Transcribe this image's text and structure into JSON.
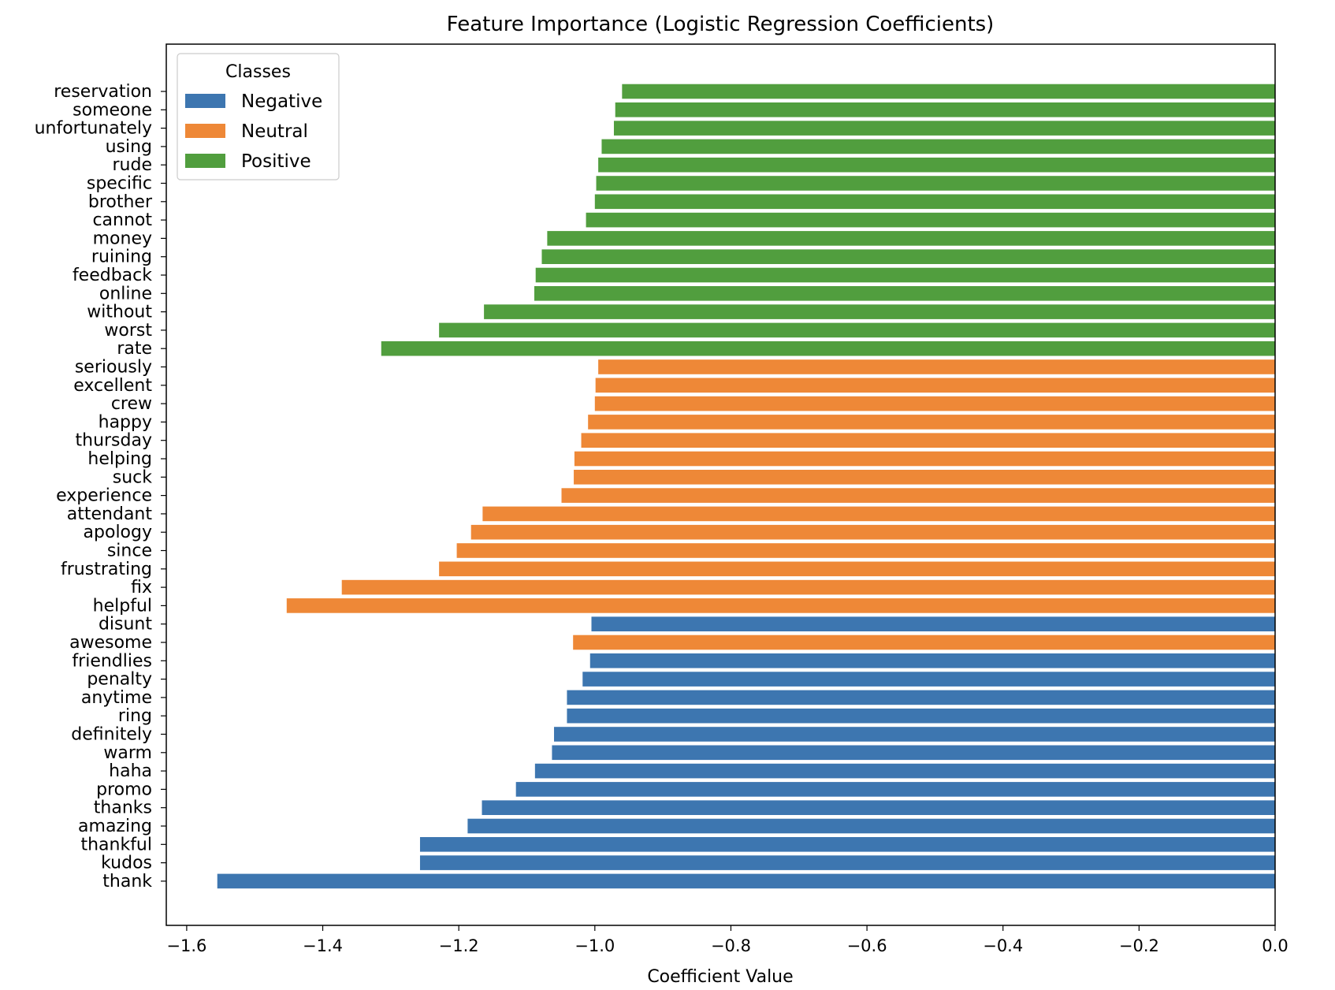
{
  "chart_data": {
    "type": "bar",
    "orientation": "horizontal",
    "title": "Feature Importance (Logistic Regression Coefficients)",
    "xlabel": "Coefficient Value",
    "ylabel": "",
    "xlim": [
      -1.63,
      0.0
    ],
    "xticks": [
      -1.6,
      -1.4,
      -1.2,
      -1.0,
      -0.8,
      -0.6,
      -0.4,
      -0.2,
      0.0
    ],
    "xtick_labels": [
      "−1.6",
      "−1.4",
      "−1.2",
      "−1.0",
      "−0.8",
      "−0.6",
      "−0.4",
      "−0.2",
      "0.0"
    ],
    "grid": false,
    "legend": {
      "title": "Classes",
      "placement": "upper-left",
      "entries": [
        {
          "name": "Negative",
          "color": "#3d76b0"
        },
        {
          "name": "Neutral",
          "color": "#ee8837"
        },
        {
          "name": "Positive",
          "color": "#519e3e"
        }
      ]
    },
    "bars": [
      {
        "label": "reservation",
        "value": -0.96,
        "class": "Positive"
      },
      {
        "label": "someone",
        "value": -0.97,
        "class": "Positive"
      },
      {
        "label": "unfortunately",
        "value": -0.972,
        "class": "Positive"
      },
      {
        "label": "using",
        "value": -0.99,
        "class": "Positive"
      },
      {
        "label": "rude",
        "value": -0.995,
        "class": "Positive"
      },
      {
        "label": "specific",
        "value": -0.998,
        "class": "Positive"
      },
      {
        "label": "brother",
        "value": -1.0,
        "class": "Positive"
      },
      {
        "label": "cannot",
        "value": -1.013,
        "class": "Positive"
      },
      {
        "label": "money",
        "value": -1.07,
        "class": "Positive"
      },
      {
        "label": "ruining",
        "value": -1.078,
        "class": "Positive"
      },
      {
        "label": "feedback",
        "value": -1.087,
        "class": "Positive"
      },
      {
        "label": "online",
        "value": -1.089,
        "class": "Positive"
      },
      {
        "label": "without",
        "value": -1.163,
        "class": "Positive"
      },
      {
        "label": "worst",
        "value": -1.229,
        "class": "Positive"
      },
      {
        "label": "rate",
        "value": -1.314,
        "class": "Positive"
      },
      {
        "label": "seriously",
        "value": -0.995,
        "class": "Neutral"
      },
      {
        "label": "excellent",
        "value": -0.999,
        "class": "Neutral"
      },
      {
        "label": "crew",
        "value": -1.0,
        "class": "Neutral"
      },
      {
        "label": "happy",
        "value": -1.01,
        "class": "Neutral"
      },
      {
        "label": "thursday",
        "value": -1.02,
        "class": "Neutral"
      },
      {
        "label": "helping",
        "value": -1.03,
        "class": "Neutral"
      },
      {
        "label": "suck",
        "value": -1.031,
        "class": "Neutral"
      },
      {
        "label": "experience",
        "value": -1.049,
        "class": "Neutral"
      },
      {
        "label": "attendant",
        "value": -1.165,
        "class": "Neutral"
      },
      {
        "label": "apology",
        "value": -1.182,
        "class": "Neutral"
      },
      {
        "label": "since",
        "value": -1.203,
        "class": "Neutral"
      },
      {
        "label": "frustrating",
        "value": -1.229,
        "class": "Neutral"
      },
      {
        "label": "fix",
        "value": -1.372,
        "class": "Neutral"
      },
      {
        "label": "helpful",
        "value": -1.453,
        "class": "Neutral"
      },
      {
        "label": "disunt",
        "value": -1.005,
        "class": "Negative"
      },
      {
        "label": "awesome",
        "value": -1.032,
        "class": "Neutral"
      },
      {
        "label": "friendlies",
        "value": -1.007,
        "class": "Negative"
      },
      {
        "label": "penalty",
        "value": -1.018,
        "class": "Negative"
      },
      {
        "label": "anytime",
        "value": -1.041,
        "class": "Negative"
      },
      {
        "label": "ring",
        "value": -1.041,
        "class": "Negative"
      },
      {
        "label": "definitely",
        "value": -1.06,
        "class": "Negative"
      },
      {
        "label": "warm",
        "value": -1.063,
        "class": "Negative"
      },
      {
        "label": "haha",
        "value": -1.088,
        "class": "Negative"
      },
      {
        "label": "promo",
        "value": -1.116,
        "class": "Negative"
      },
      {
        "label": "thanks",
        "value": -1.166,
        "class": "Negative"
      },
      {
        "label": "amazing",
        "value": -1.187,
        "class": "Negative"
      },
      {
        "label": "thankful",
        "value": -1.257,
        "class": "Negative"
      },
      {
        "label": "kudos",
        "value": -1.257,
        "class": "Negative"
      },
      {
        "label": "thank",
        "value": -1.555,
        "class": "Negative"
      }
    ]
  }
}
